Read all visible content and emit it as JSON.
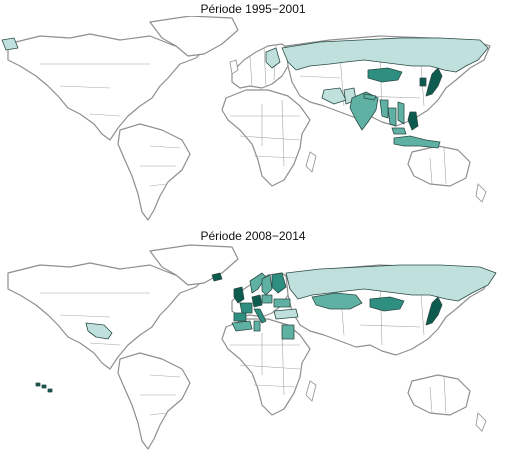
{
  "panels": [
    {
      "title": "Période 1995−2001",
      "countries": [
        {
          "name": "Russia",
          "shade": "light"
        },
        {
          "name": "Mongolia",
          "shade": "dark"
        },
        {
          "name": "India",
          "shade": "medium"
        },
        {
          "name": "Nepal",
          "shade": "medium"
        },
        {
          "name": "Myanmar",
          "shade": "medium"
        },
        {
          "name": "Thailand",
          "shade": "medium"
        },
        {
          "name": "Vietnam",
          "shade": "medium"
        },
        {
          "name": "Malaysia",
          "shade": "medium"
        },
        {
          "name": "Philippines",
          "shade": "darkest"
        },
        {
          "name": "Japan",
          "shade": "darkest"
        },
        {
          "name": "South Korea",
          "shade": "darkest"
        },
        {
          "name": "Iran",
          "shade": "light"
        },
        {
          "name": "Pakistan",
          "shade": "light"
        },
        {
          "name": "Finland",
          "shade": "light"
        },
        {
          "name": "Indonesia",
          "shade": "medium"
        },
        {
          "name": "Greenland (tip)",
          "shade": "light"
        }
      ]
    },
    {
      "title": "Période 2008−2014",
      "countries": [
        {
          "name": "Russia",
          "shade": "light"
        },
        {
          "name": "Kazakhstan",
          "shade": "medium"
        },
        {
          "name": "Mongolia",
          "shade": "dark"
        },
        {
          "name": "Japan",
          "shade": "darkest"
        },
        {
          "name": "Mexico",
          "shade": "light"
        },
        {
          "name": "Norway",
          "shade": "medium"
        },
        {
          "name": "Sweden",
          "shade": "medium"
        },
        {
          "name": "Finland",
          "shade": "dark"
        },
        {
          "name": "United Kingdom",
          "shade": "darkest"
        },
        {
          "name": "Iceland",
          "shade": "darkest"
        },
        {
          "name": "Germany",
          "shade": "darkest"
        },
        {
          "name": "France",
          "shade": "dark"
        },
        {
          "name": "Spain",
          "shade": "dark"
        },
        {
          "name": "Italy",
          "shade": "dark"
        },
        {
          "name": "Poland",
          "shade": "medium"
        },
        {
          "name": "Ukraine",
          "shade": "medium"
        },
        {
          "name": "Turkey",
          "shade": "light"
        },
        {
          "name": "Egypt",
          "shade": "medium"
        },
        {
          "name": "Tunisia",
          "shade": "medium"
        },
        {
          "name": "Algeria (north)",
          "shade": "medium"
        },
        {
          "name": "Hawaii",
          "shade": "darkest"
        }
      ]
    }
  ],
  "colors": {
    "light": "#bfe0dc",
    "medium": "#5fb1a3",
    "dark": "#2e8f80",
    "darkest": "#0d5b4f",
    "land": "#ffffff",
    "outline": "#8f8f8f"
  }
}
